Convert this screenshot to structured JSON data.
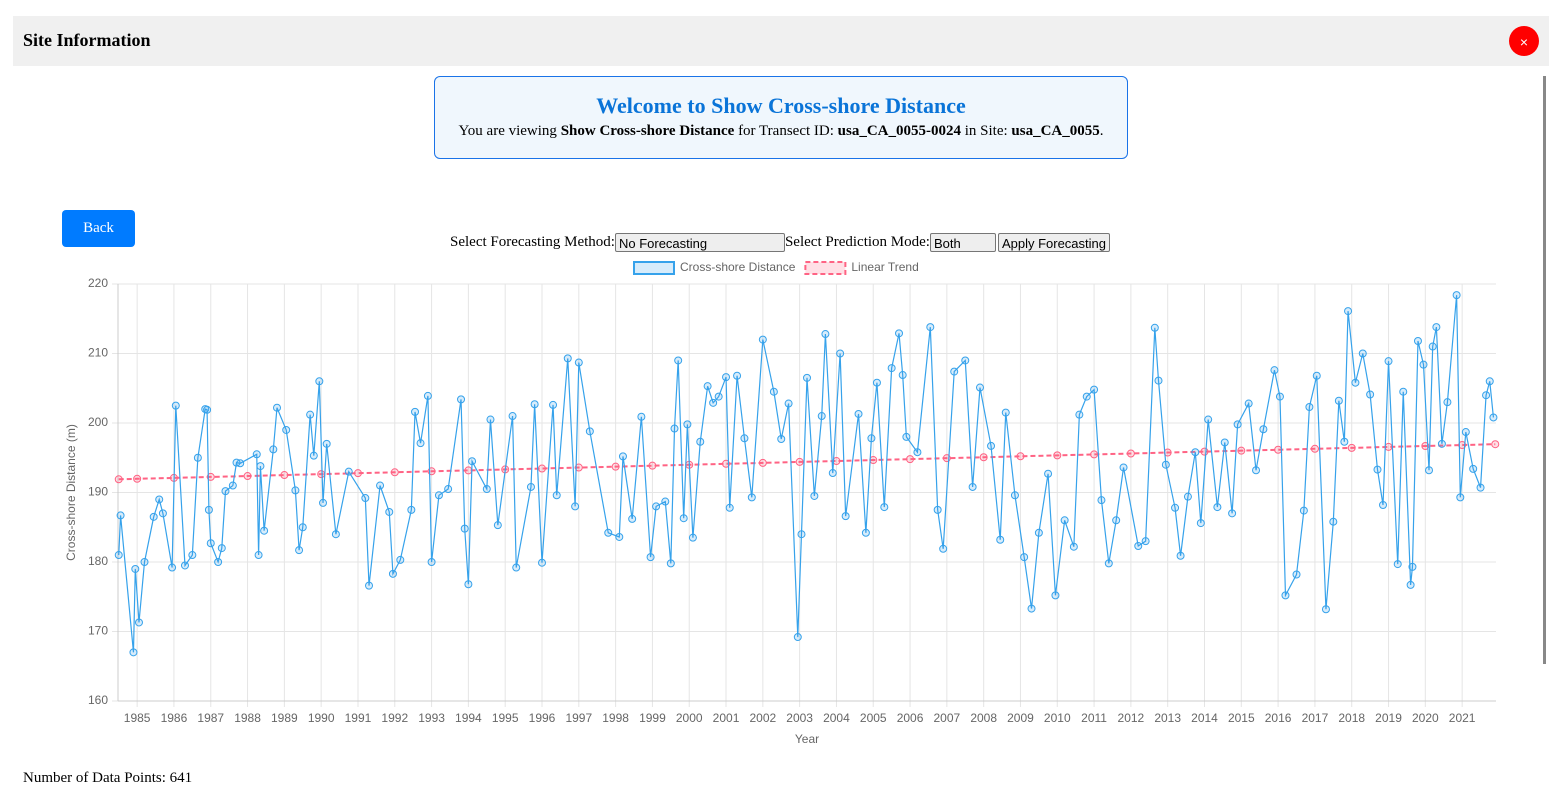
{
  "header": {
    "title": "Site Information",
    "close": "×"
  },
  "welcome": {
    "title": "Welcome to Show Cross-shore Distance",
    "text": [
      "You are viewing ",
      "Show Cross-shore Distance",
      " for Transect ID: ",
      "usa_CA_0055-0024",
      " in Site: ",
      "usa_CA_0055",
      "."
    ]
  },
  "back_button": "Back",
  "controls": {
    "method_label": "Select Forecasting Method:",
    "method_value": "No Forecasting",
    "mode_label": "Select Prediction Mode:",
    "mode_value": "Both",
    "apply_button": "Apply Forecasting"
  },
  "footer": "Number of Data Points: 641",
  "chart_data": {
    "type": "line",
    "x_label": "Year",
    "y_label": "Cross-shore Distance (m)",
    "xlim": [
      1984.48,
      2021.92
    ],
    "xticks": [
      1985,
      1986,
      1987,
      1988,
      1989,
      1990,
      1991,
      1992,
      1993,
      1994,
      1995,
      1996,
      1997,
      1998,
      1999,
      2000,
      2001,
      2002,
      2003,
      2004,
      2005,
      2006,
      2007,
      2008,
      2009,
      2010,
      2011,
      2012,
      2013,
      2014,
      2015,
      2016,
      2017,
      2018,
      2019,
      2020,
      2021
    ],
    "ylim": [
      160,
      220
    ],
    "yticks": [
      160,
      170,
      180,
      190,
      200,
      210,
      220
    ],
    "grid": true,
    "series": [
      {
        "name": "Cross-shore Distance",
        "color": "#36a2eb",
        "dashed": false,
        "x": [
          1984.5,
          1984.55,
          1984.9,
          1984.95,
          1985.05,
          1985.2,
          1985.45,
          1985.6,
          1985.7,
          1985.95,
          1986.05,
          1986.3,
          1986.5,
          1986.65,
          1986.85,
          1986.9,
          1986.95,
          1987.0,
          1987.2,
          1987.3,
          1987.4,
          1987.6,
          1987.7,
          1987.8,
          1988.25,
          1988.3,
          1988.35,
          1988.45,
          1988.7,
          1988.8,
          1989.05,
          1989.3,
          1989.4,
          1989.5,
          1989.7,
          1989.8,
          1989.95,
          1990.05,
          1990.15,
          1990.4,
          1990.75,
          1991.2,
          1991.3,
          1991.6,
          1991.85,
          1991.95,
          1992.15,
          1992.45,
          1992.55,
          1992.7,
          1992.9,
          1993.0,
          1993.2,
          1993.45,
          1993.8,
          1993.9,
          1994.0,
          1994.1,
          1994.5,
          1994.6,
          1994.8,
          1995.2,
          1995.3,
          1995.7,
          1995.8,
          1996.0,
          1996.3,
          1996.4,
          1996.7,
          1996.9,
          1997.0,
          1997.3,
          1997.8,
          1998.1,
          1998.2,
          1998.45,
          1998.7,
          1998.95,
          1999.1,
          1999.35,
          1999.5,
          1999.6,
          1999.7,
          1999.85,
          1999.95,
          2000.1,
          2000.3,
          2000.5,
          2000.65,
          2000.8,
          2001.0,
          2001.1,
          2001.3,
          2001.5,
          2001.7,
          2002.0,
          2002.3,
          2002.5,
          2002.7,
          2002.95,
          2003.05,
          2003.2,
          2003.4,
          2003.6,
          2003.7,
          2003.9,
          2004.1,
          2004.25,
          2004.6,
          2004.8,
          2004.95,
          2005.1,
          2005.3,
          2005.5,
          2005.7,
          2005.8,
          2005.9,
          2006.2,
          2006.55,
          2006.75,
          2006.9,
          2007.2,
          2007.5,
          2007.7,
          2007.9,
          2008.2,
          2008.45,
          2008.6,
          2008.85,
          2009.1,
          2009.3,
          2009.5,
          2009.75,
          2009.95,
          2010.2,
          2010.45,
          2010.6,
          2010.8,
          2011.0,
          2011.2,
          2011.4,
          2011.6,
          2011.8,
          2012.2,
          2012.4,
          2012.65,
          2012.75,
          2012.95,
          2013.2,
          2013.35,
          2013.55,
          2013.75,
          2013.9,
          2014.1,
          2014.35,
          2014.55,
          2014.75,
          2014.9,
          2015.2,
          2015.4,
          2015.6,
          2015.9,
          2016.05,
          2016.2,
          2016.5,
          2016.7,
          2016.85,
          2017.05,
          2017.3,
          2017.5,
          2017.65,
          2017.8,
          2017.9,
          2018.1,
          2018.3,
          2018.5,
          2018.7,
          2018.85,
          2019.0,
          2019.25,
          2019.4,
          2019.6,
          2019.65,
          2019.8,
          2019.95,
          2020.1,
          2020.2,
          2020.3,
          2020.45,
          2020.6,
          2020.85,
          2020.95,
          2021.1,
          2021.3,
          2021.5,
          2021.65,
          2021.75,
          2021.85
        ],
        "values": [
          181,
          186.7,
          167,
          179,
          171.3,
          180,
          186.5,
          189,
          187,
          179.2,
          202.5,
          179.5,
          181,
          195,
          202,
          201.9,
          187.5,
          182.7,
          180,
          182,
          190.2,
          191,
          194.3,
          194.2,
          195.5,
          181,
          193.8,
          184.5,
          196.2,
          202.2,
          199,
          190.3,
          181.7,
          185,
          201.2,
          195.3,
          206,
          188.5,
          197,
          184,
          193,
          189.2,
          176.6,
          191,
          187.2,
          178.3,
          180.3,
          187.5,
          201.6,
          197.1,
          203.9,
          180,
          189.6,
          190.5,
          203.4,
          184.8,
          176.8,
          194.5,
          190.5,
          200.5,
          185.3,
          201,
          179.2,
          190.8,
          202.7,
          179.9,
          202.6,
          189.6,
          209.3,
          188,
          208.7,
          198.8,
          184.2,
          183.6,
          195.2,
          186.2,
          200.9,
          180.7,
          188,
          188.7,
          179.8,
          199.2,
          209,
          186.3,
          199.8,
          183.5,
          197.3,
          205.3,
          202.9,
          203.8,
          206.6,
          187.8,
          206.8,
          197.8,
          189.3,
          212,
          204.5,
          197.7,
          202.8,
          169.2,
          184,
          206.5,
          189.5,
          201,
          212.8,
          192.8,
          210,
          186.6,
          201.3,
          184.2,
          197.8,
          205.8,
          187.9,
          207.9,
          212.9,
          206.9,
          198,
          195.8,
          213.8,
          187.5,
          181.9,
          207.4,
          209,
          190.8,
          205.1,
          196.7,
          183.2,
          201.5,
          189.6,
          180.7,
          173.3,
          184.2,
          192.7,
          175.2,
          186,
          182.2,
          201.2,
          203.8,
          204.8,
          188.9,
          179.8,
          186,
          193.6,
          182.3,
          183,
          213.7,
          206.1,
          194,
          187.8,
          180.9,
          189.4,
          195.8,
          185.6,
          200.5,
          187.9,
          197.2,
          187,
          199.8,
          202.8,
          193.2,
          199.1,
          207.6,
          203.8,
          175.2,
          178.2,
          187.4,
          202.3,
          206.8,
          173.2,
          185.8,
          203.2,
          197.3,
          216.1,
          205.8,
          210,
          204.1,
          193.3,
          188.2,
          208.9,
          179.7,
          204.5,
          176.7,
          179.3,
          211.8,
          208.4,
          193.2,
          211,
          213.8,
          197,
          203,
          218.4,
          189.3,
          198.7,
          193.4,
          190.7,
          204,
          206,
          200.8
        ]
      },
      {
        "name": "Linear Trend",
        "color": "#ff6384",
        "dashed": true,
        "x": [
          1984.5,
          1985,
          1986,
          1987,
          1988,
          1989,
          1990,
          1991,
          1992,
          1993,
          1994,
          1995,
          1996,
          1997,
          1998,
          1999,
          2000,
          2001,
          2002,
          2003,
          2004,
          2005,
          2006,
          2007,
          2008,
          2009,
          2010,
          2011,
          2012,
          2013,
          2014,
          2015,
          2016,
          2017,
          2018,
          2019,
          2020,
          2021,
          2021.9
        ],
        "values": [
          191.9,
          191.97,
          192.1,
          192.24,
          192.37,
          192.51,
          192.64,
          192.78,
          192.91,
          193.05,
          193.18,
          193.32,
          193.45,
          193.59,
          193.72,
          193.86,
          193.99,
          194.13,
          194.26,
          194.4,
          194.53,
          194.67,
          194.8,
          194.94,
          195.07,
          195.21,
          195.34,
          195.48,
          195.61,
          195.75,
          195.88,
          196.02,
          196.15,
          196.29,
          196.42,
          196.56,
          196.69,
          196.83,
          196.95
        ]
      }
    ]
  }
}
